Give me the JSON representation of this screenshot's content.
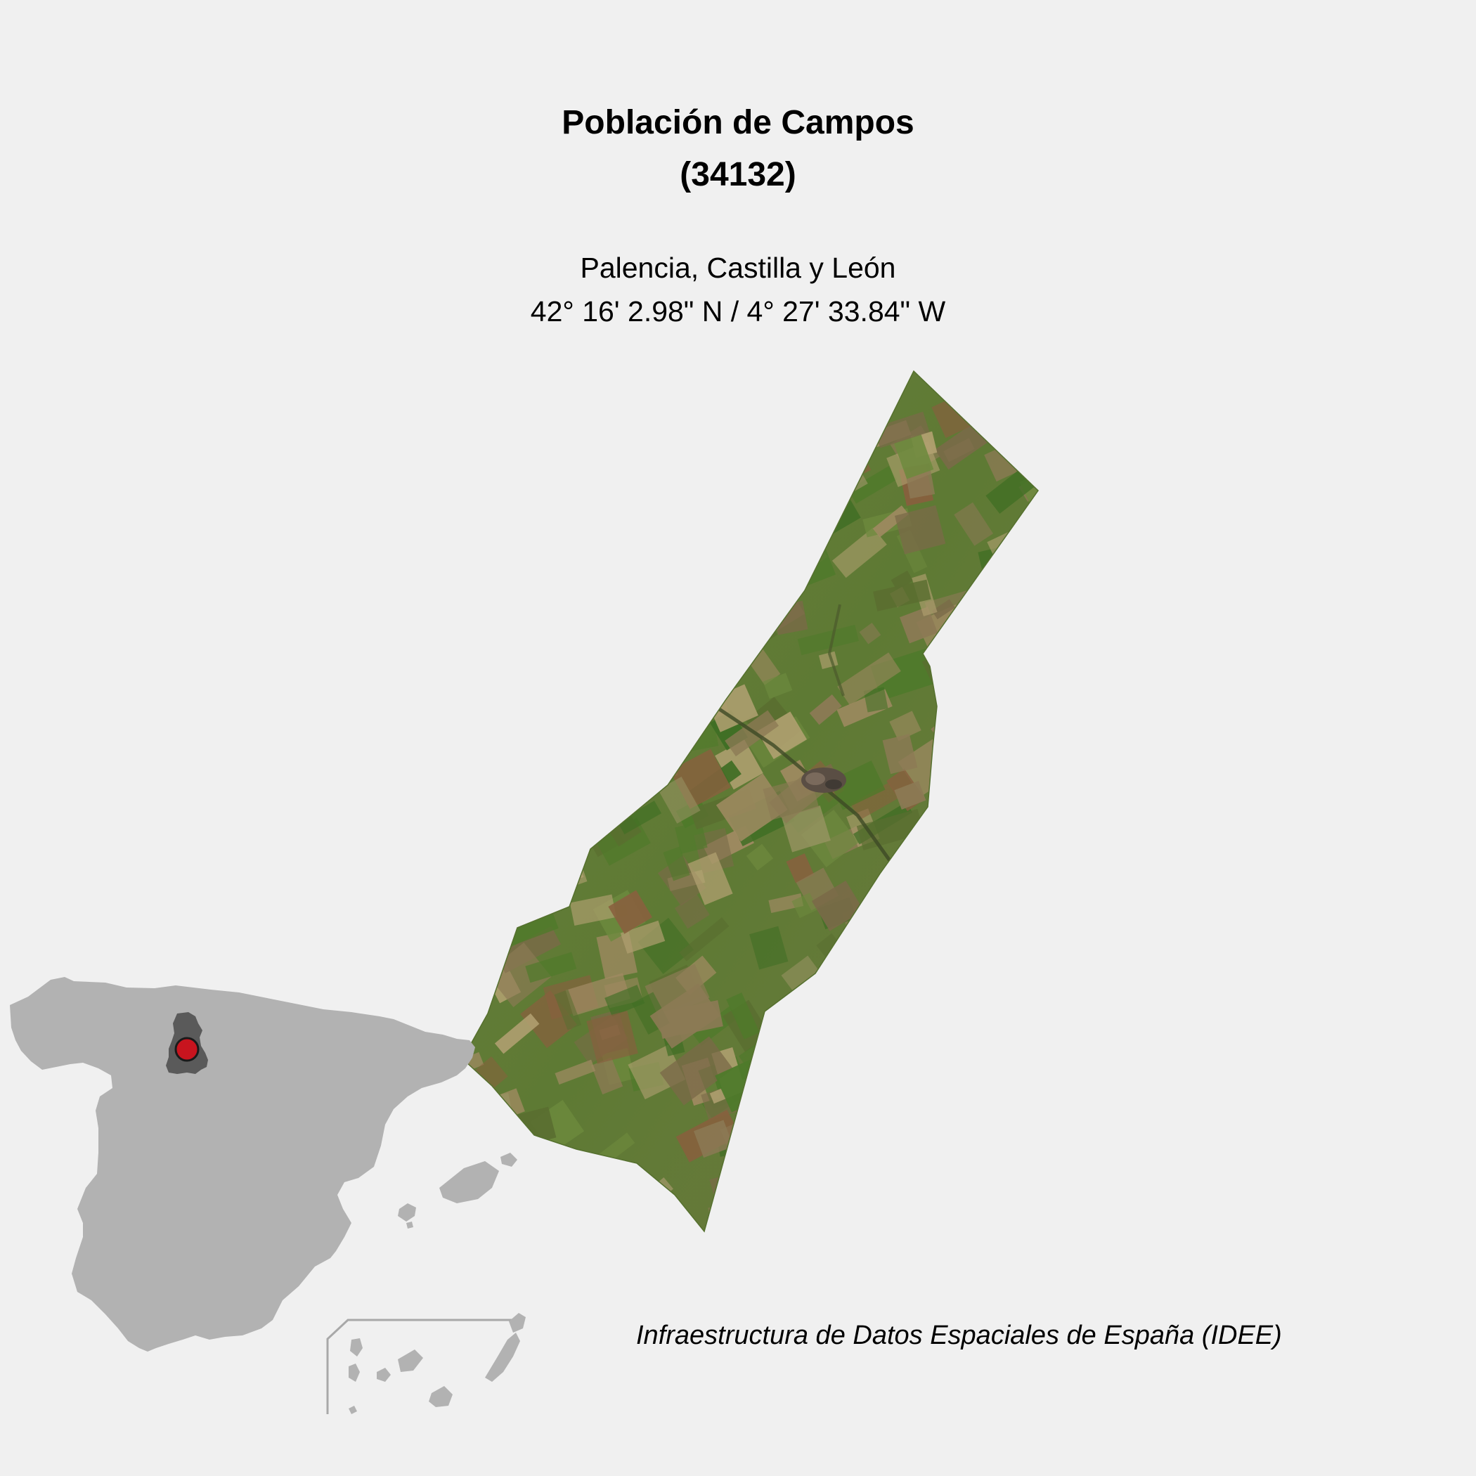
{
  "map": {
    "title_line1": "Población de Campos",
    "title_line2": "(34132)",
    "region": "Palencia, Castilla y León",
    "coordinates": "42° 16' 2.98\" N / 4° 27' 33.84\" W",
    "credit": "Infraestructura de Datos Espaciales de España (IDEE)"
  },
  "colors": {
    "background": "#f0f0f0",
    "inset_land": "#b2b2b2",
    "province_highlight": "#5a5a5a",
    "location_marker": "#c8141e",
    "inset_frame": "#a8a8a8",
    "satellite_base": "#5f7a36"
  }
}
